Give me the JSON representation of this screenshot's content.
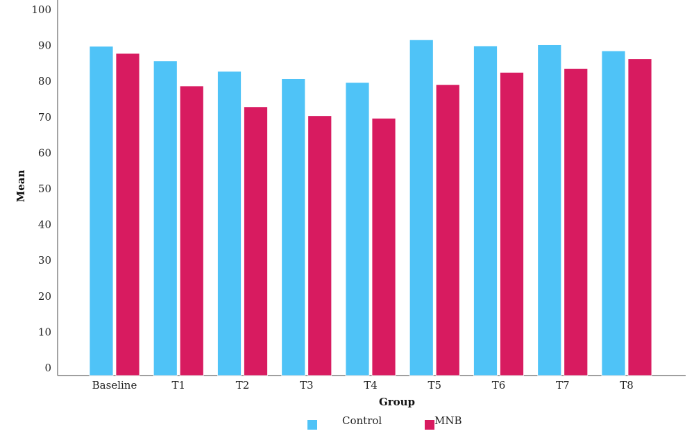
{
  "chart_data": {
    "type": "bar",
    "title": "",
    "xlabel": "Group",
    "ylabel": "Mean",
    "categories": [
      "Baseline",
      "T1",
      "T2",
      "T3",
      "T4",
      "T5",
      "T6",
      "T7",
      "T8"
    ],
    "series": [
      {
        "name": "Control",
        "color": "#4fc3f7",
        "values": [
          89.8,
          85.7,
          82.8,
          80.7,
          79.7,
          91.6,
          89.9,
          90.2,
          88.5
        ]
      },
      {
        "name": "MNB",
        "color": "#d81b60",
        "values": [
          87.8,
          78.7,
          72.9,
          70.4,
          69.7,
          79.1,
          82.5,
          83.6,
          86.3
        ]
      }
    ],
    "ylim": [
      0,
      100
    ],
    "yticks": [
      "0",
      "10",
      "20",
      "30",
      "40",
      "50",
      "60",
      "70",
      "80",
      "90",
      "100"
    ],
    "grid": false,
    "legend_position": "bottom"
  }
}
